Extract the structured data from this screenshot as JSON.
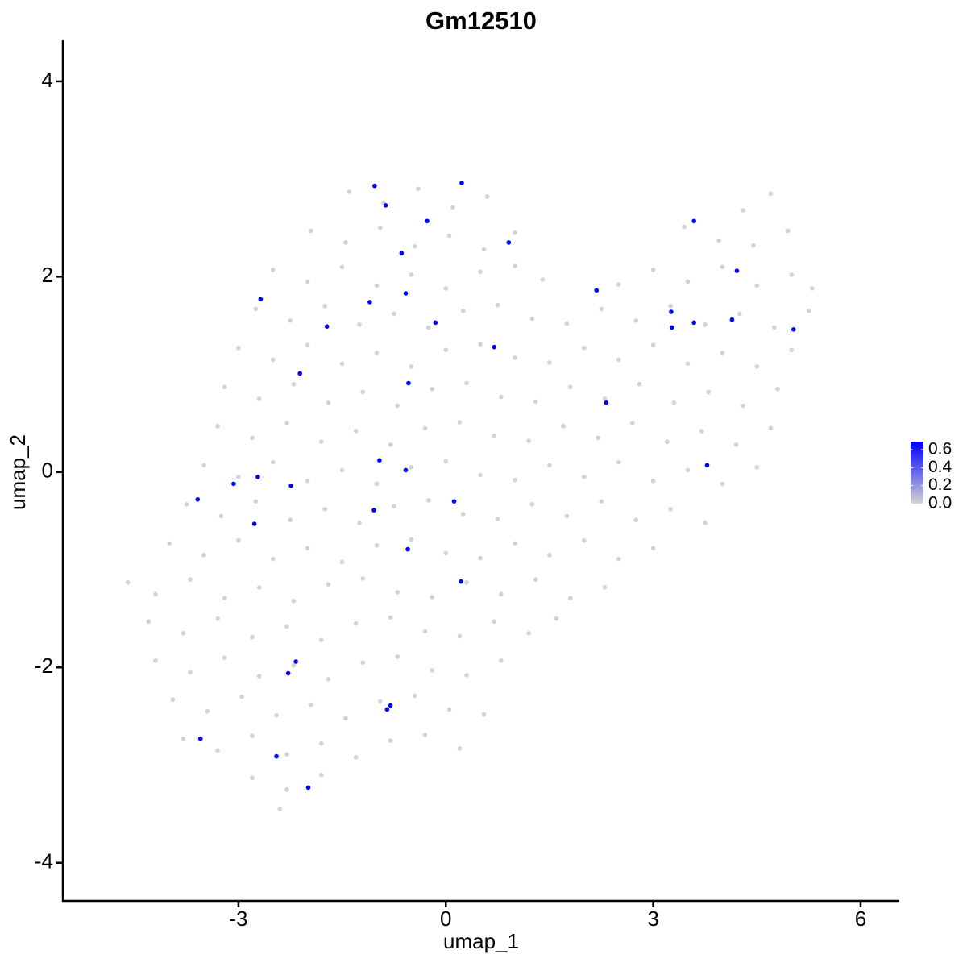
{
  "chart_data": {
    "type": "scatter",
    "title": "Gm12510",
    "x_label": "umap_1",
    "y_label": "umap_2",
    "xlim": [
      -5.54,
      6.56
    ],
    "ylim": [
      -4.39,
      4.42
    ],
    "xticks": [
      -3,
      0,
      3,
      6
    ],
    "yticks": [
      -4,
      -2,
      0,
      2,
      4
    ],
    "colors": [
      "#d3d3d3",
      "#0000ff"
    ],
    "clim": [
      0,
      0.69
    ],
    "cticks": [
      {
        "value": 0,
        "label": "0.0"
      },
      0.2,
      0.4,
      0.6
    ],
    "x": [
      -1.4,
      -0.9,
      -0.4,
      0.1,
      0.6,
      4.3,
      4.7,
      -1.95,
      -1.45,
      -0.95,
      -0.45,
      0.05,
      0.55,
      1.0,
      3.45,
      3.95,
      4.45,
      4.95,
      -2.5,
      -2.0,
      -1.5,
      -1.0,
      -0.5,
      0,
      0.5,
      1.0,
      1.4,
      2.5,
      3.0,
      3.5,
      4.0,
      4.5,
      5.0,
      5.3,
      -2.75,
      -2.25,
      -1.75,
      -1.25,
      -0.75,
      -0.25,
      0.25,
      0.75,
      1.25,
      1.75,
      2.25,
      2.75,
      3.25,
      3.75,
      4.25,
      4.75,
      5.25,
      -3,
      -2.5,
      -2,
      -1.5,
      -1,
      -0.5,
      0,
      0.5,
      1,
      1.5,
      2,
      2.5,
      3,
      3.5,
      4,
      4.5,
      5,
      -3.2,
      -2.7,
      -2.2,
      -1.7,
      -1.2,
      -0.7,
      -0.2,
      0.3,
      0.8,
      1.3,
      1.8,
      2.3,
      2.8,
      3.3,
      3.8,
      4.3,
      4.8,
      -3.3,
      -2.8,
      -2.3,
      -1.8,
      -1.3,
      -0.8,
      -0.3,
      0.2,
      0.7,
      1.2,
      1.7,
      2.2,
      2.7,
      3.2,
      3.7,
      4.2,
      4.7,
      -3.5,
      -3,
      -2.5,
      -2,
      -1.5,
      -1,
      -0.5,
      0,
      0.5,
      1,
      1.5,
      2,
      2.5,
      3,
      3.5,
      4,
      4.5,
      -3.75,
      -3.25,
      -2.75,
      -2.25,
      -1.75,
      -1.25,
      -0.75,
      -0.25,
      0.25,
      0.75,
      1.25,
      1.75,
      2.25,
      2.75,
      3.25,
      3.75,
      -4,
      -3.5,
      -3,
      -2.5,
      -2,
      -1.5,
      -1,
      -0.5,
      0,
      0.5,
      1,
      1.5,
      2,
      2.5,
      3,
      -4.6,
      -4.2,
      -3.7,
      -3.2,
      -2.7,
      -2.2,
      -1.7,
      -1.2,
      -0.7,
      -0.2,
      0.3,
      0.8,
      1.3,
      1.8,
      2.3,
      -4.3,
      -3.8,
      -3.3,
      -2.8,
      -2.3,
      -1.8,
      -1.3,
      -0.8,
      -0.3,
      0.2,
      0.7,
      1.2,
      1.6,
      -4.2,
      -3.7,
      -3.2,
      -2.7,
      -2.2,
      -1.7,
      -1.2,
      -0.7,
      -0.2,
      0.3,
      0.8,
      -3.95,
      -3.45,
      -2.95,
      -2.45,
      -1.95,
      -1.45,
      -0.95,
      -0.45,
      0.05,
      0.55,
      -3.8,
      -3.3,
      -2.8,
      -2.3,
      -1.8,
      -1.3,
      -0.8,
      -0.3,
      0.2,
      -2.8,
      -2.3,
      -1.8,
      -2.4,
      -1.03,
      -0.87,
      0.23,
      -0.27,
      0.91,
      -0.64,
      3.59,
      4.21,
      2.18,
      -2.68,
      -1.1,
      -0.58,
      -0.15,
      -1.72,
      0.7,
      3.26,
      3.27,
      3.59,
      4.14,
      5.03,
      -2.11,
      -0.54,
      2.32,
      -0.96,
      -0.58,
      3.78,
      -3.07,
      -2.72,
      -2.24,
      -3.59,
      0.12,
      -1.04,
      -2.77,
      -0.55,
      0.22,
      -2.17,
      -2.28,
      -0.8,
      -0.85,
      -3.55,
      -2.45,
      -1.99
    ],
    "y": [
      2.87,
      2.75,
      2.9,
      2.71,
      2.82,
      2.68,
      2.85,
      2.47,
      2.35,
      2.5,
      2.31,
      2.42,
      2.28,
      2.45,
      2.51,
      2.37,
      2.32,
      2.47,
      2.07,
      1.95,
      2.1,
      1.91,
      2.02,
      1.88,
      2.05,
      2.11,
      1.97,
      1.92,
      2.07,
      1.95,
      2.1,
      1.91,
      2.02,
      1.88,
      1.67,
      1.55,
      1.7,
      1.51,
      1.62,
      1.48,
      1.65,
      1.71,
      1.57,
      1.52,
      1.67,
      1.55,
      1.7,
      1.51,
      1.62,
      1.48,
      1.65,
      1.27,
      1.15,
      1.3,
      1.11,
      1.22,
      1.08,
      1.25,
      1.31,
      1.17,
      1.12,
      1.27,
      1.15,
      1.3,
      1.11,
      1.22,
      1.08,
      1.25,
      0.87,
      0.75,
      0.9,
      0.71,
      0.82,
      0.68,
      0.85,
      0.91,
      0.77,
      0.72,
      0.87,
      0.75,
      0.9,
      0.71,
      0.82,
      0.68,
      0.85,
      0.47,
      0.35,
      0.5,
      0.31,
      0.42,
      0.28,
      0.45,
      0.51,
      0.37,
      0.32,
      0.47,
      0.35,
      0.5,
      0.31,
      0.42,
      0.28,
      0.45,
      0.07,
      -0.05,
      0.1,
      -0.09,
      0.02,
      -0.12,
      0.05,
      0.11,
      -0.03,
      -0.08,
      0.07,
      -0.05,
      0.1,
      -0.09,
      0.02,
      -0.12,
      0.05,
      -0.33,
      -0.45,
      -0.3,
      -0.49,
      -0.38,
      -0.52,
      -0.35,
      -0.29,
      -0.43,
      -0.48,
      -0.33,
      -0.45,
      -0.3,
      -0.49,
      -0.38,
      -0.52,
      -0.73,
      -0.85,
      -0.7,
      -0.89,
      -0.78,
      -0.92,
      -0.75,
      -0.69,
      -0.83,
      -0.88,
      -0.73,
      -0.85,
      -0.7,
      -0.89,
      -0.78,
      -1.13,
      -1.25,
      -1.1,
      -1.29,
      -1.18,
      -1.32,
      -1.15,
      -1.09,
      -1.23,
      -1.28,
      -1.13,
      -1.25,
      -1.1,
      -1.29,
      -1.18,
      -1.53,
      -1.65,
      -1.5,
      -1.69,
      -1.58,
      -1.72,
      -1.55,
      -1.49,
      -1.63,
      -1.68,
      -1.53,
      -1.65,
      -1.5,
      -1.93,
      -2.05,
      -1.9,
      -2.09,
      -1.98,
      -2.12,
      -1.95,
      -1.89,
      -2.03,
      -2.08,
      -1.93,
      -2.33,
      -2.45,
      -2.3,
      -2.49,
      -2.38,
      -2.52,
      -2.35,
      -2.29,
      -2.43,
      -2.48,
      -2.73,
      -2.85,
      -2.7,
      -2.89,
      -2.78,
      -2.92,
      -2.75,
      -2.69,
      -2.83,
      -3.13,
      -3.25,
      -3.1,
      -3.45,
      2.93,
      2.73,
      2.96,
      2.57,
      2.35,
      2.24,
      2.57,
      2.06,
      1.86,
      1.77,
      1.74,
      1.83,
      1.53,
      1.49,
      1.28,
      1.64,
      1.48,
      1.53,
      1.56,
      1.46,
      1.01,
      0.91,
      0.71,
      0.12,
      0.02,
      0.07,
      -0.12,
      -0.05,
      -0.14,
      -0.28,
      -0.3,
      -0.39,
      -0.53,
      -0.79,
      -1.12,
      -1.94,
      -2.06,
      -2.39,
      -2.43,
      -2.73,
      -2.91,
      -3.23
    ],
    "values": [
      0,
      0,
      0,
      0,
      0,
      0,
      0,
      0,
      0,
      0,
      0,
      0,
      0,
      0,
      0,
      0,
      0,
      0,
      0,
      0,
      0,
      0,
      0,
      0,
      0,
      0,
      0,
      0,
      0,
      0,
      0,
      0,
      0,
      0,
      0,
      0,
      0,
      0,
      0,
      0,
      0,
      0,
      0,
      0,
      0,
      0,
      0,
      0,
      0,
      0,
      0,
      0,
      0,
      0,
      0,
      0,
      0,
      0,
      0,
      0,
      0,
      0,
      0,
      0,
      0,
      0,
      0,
      0,
      0,
      0,
      0,
      0,
      0,
      0,
      0,
      0,
      0,
      0,
      0,
      0,
      0,
      0,
      0,
      0,
      0,
      0,
      0,
      0,
      0,
      0,
      0,
      0,
      0,
      0,
      0,
      0,
      0,
      0,
      0,
      0,
      0,
      0,
      0,
      0,
      0,
      0,
      0,
      0,
      0,
      0,
      0,
      0,
      0,
      0,
      0,
      0,
      0,
      0,
      0,
      0,
      0,
      0,
      0,
      0,
      0,
      0,
      0,
      0,
      0,
      0,
      0,
      0,
      0,
      0,
      0,
      0,
      0,
      0,
      0,
      0,
      0,
      0,
      0,
      0,
      0,
      0,
      0,
      0,
      0,
      0,
      0,
      0,
      0,
      0,
      0,
      0,
      0,
      0,
      0,
      0,
      0,
      0,
      0,
      0,
      0,
      0,
      0,
      0,
      0,
      0,
      0,
      0,
      0,
      0,
      0,
      0,
      0,
      0,
      0,
      0,
      0,
      0,
      0,
      0,
      0,
      0,
      0,
      0,
      0,
      0,
      0,
      0,
      0,
      0,
      0,
      0,
      0,
      0,
      0,
      0,
      0,
      0,
      0,
      0,
      0,
      0,
      0,
      0,
      0,
      0,
      0,
      0,
      0.69,
      0.69,
      0.69,
      0.69,
      0.69,
      0.69,
      0.69,
      0.69,
      0.69,
      0.69,
      0.69,
      0.69,
      0.69,
      0.69,
      0.69,
      0.69,
      0.69,
      0.69,
      0.69,
      0.69,
      0.69,
      0.69,
      0.69,
      0.69,
      0.69,
      0.69,
      0.69,
      0.69,
      0.69,
      0.69,
      0.69,
      0.69,
      0.69,
      0.69,
      0.69,
      0.69,
      0.69,
      0.69,
      0.69,
      0.69,
      0.69,
      0.69
    ]
  }
}
